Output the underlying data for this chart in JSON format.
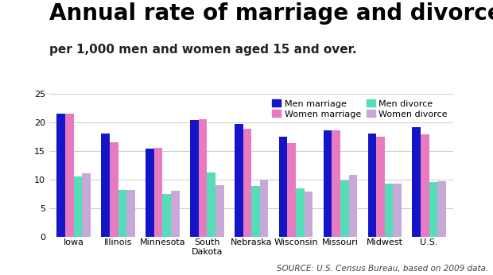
{
  "title": "Annual rate of marriage and divorce",
  "subtitle": "per 1,000 men and women aged 15 and over.",
  "source": "SOURCE: U.S. Census Bureau, based on 2009 data.",
  "categories": [
    "Iowa",
    "Illinois",
    "Minnesota",
    "South\nDakota",
    "Nebraska",
    "Wisconsin",
    "Missouri",
    "Midwest",
    "U.S."
  ],
  "men_marriage": [
    21.5,
    18.0,
    15.4,
    20.3,
    19.7,
    17.5,
    18.5,
    18.0,
    19.1
  ],
  "women_marriage": [
    21.5,
    16.5,
    15.5,
    20.5,
    18.8,
    16.4,
    18.5,
    17.4,
    17.9
  ],
  "men_divorce": [
    10.5,
    8.2,
    7.5,
    11.2,
    8.8,
    8.4,
    9.8,
    9.3,
    9.5
  ],
  "women_divorce": [
    11.0,
    8.2,
    8.0,
    9.0,
    10.0,
    7.8,
    10.8,
    9.3,
    9.7
  ],
  "colors": {
    "men_marriage": "#1515c8",
    "women_marriage": "#e87abf",
    "men_divorce": "#55ddb8",
    "women_divorce": "#c8a8d8"
  },
  "ylim": [
    0,
    25
  ],
  "yticks": [
    0,
    5,
    10,
    15,
    20,
    25
  ],
  "bar_width": 0.19,
  "background_color": "#ffffff",
  "title_fontsize": 20,
  "subtitle_fontsize": 11,
  "source_fontsize": 7.5,
  "legend_fontsize": 8,
  "tick_fontsize": 8
}
